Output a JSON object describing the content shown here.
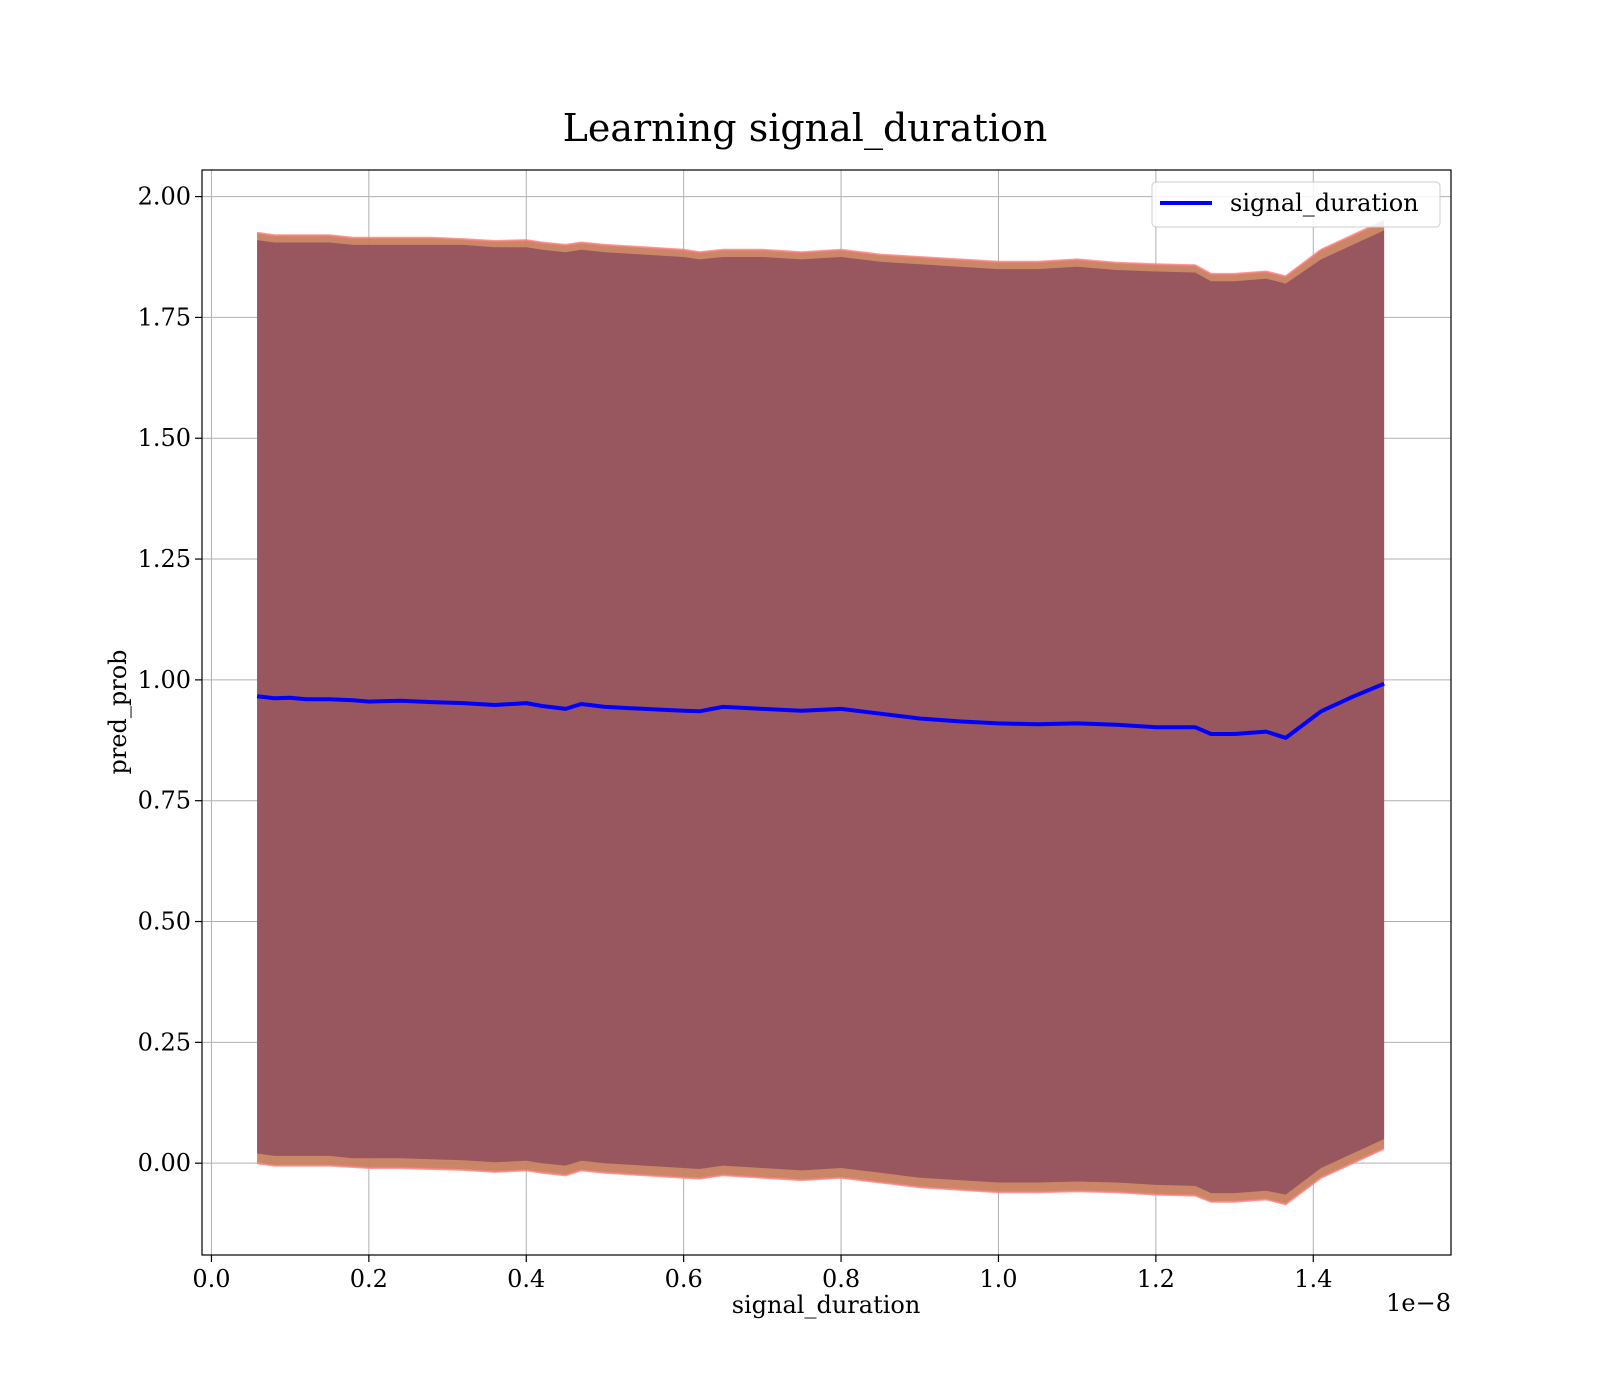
{
  "chart_data": {
    "type": "line",
    "title": "Learning signal_duration",
    "xlabel": "signal_duration",
    "ylabel": "pred_prob",
    "x_offset_text": "1e−8",
    "xlim": [
      -0.012,
      1.575
    ],
    "ylim": [
      -0.19,
      2.055
    ],
    "x_ticks": [
      0.0,
      0.2,
      0.4,
      0.6,
      0.8,
      1.0,
      1.2,
      1.4
    ],
    "x_tick_labels": [
      "0.0",
      "0.2",
      "0.4",
      "0.6",
      "0.8",
      "1.0",
      "1.2",
      "1.4"
    ],
    "y_ticks": [
      0.0,
      0.25,
      0.5,
      0.75,
      1.0,
      1.25,
      1.5,
      1.75,
      2.0
    ],
    "y_tick_labels": [
      "0.00",
      "0.25",
      "0.50",
      "0.75",
      "1.00",
      "1.25",
      "1.50",
      "1.75",
      "2.00"
    ],
    "grid": true,
    "legend": {
      "placement": "top-right",
      "entries": [
        "signal_duration"
      ]
    },
    "colors": {
      "line": "#0000ff",
      "band_inner": "#8b4a5c",
      "band_outer": "#c88060",
      "band_edge": "#ff8080"
    },
    "series": [
      {
        "name": "signal_duration",
        "x": [
          0.058,
          0.08,
          0.1,
          0.12,
          0.15,
          0.18,
          0.2,
          0.24,
          0.28,
          0.32,
          0.36,
          0.4,
          0.42,
          0.45,
          0.47,
          0.5,
          0.55,
          0.6,
          0.62,
          0.65,
          0.7,
          0.75,
          0.8,
          0.85,
          0.9,
          0.95,
          1.0,
          1.05,
          1.1,
          1.15,
          1.2,
          1.25,
          1.27,
          1.3,
          1.34,
          1.365,
          1.41,
          1.45,
          1.49
        ],
        "y": [
          0.966,
          0.962,
          0.963,
          0.96,
          0.96,
          0.958,
          0.955,
          0.957,
          0.954,
          0.952,
          0.948,
          0.952,
          0.946,
          0.94,
          0.95,
          0.944,
          0.94,
          0.936,
          0.935,
          0.944,
          0.94,
          0.936,
          0.94,
          0.93,
          0.92,
          0.914,
          0.91,
          0.908,
          0.91,
          0.907,
          0.902,
          0.902,
          0.888,
          0.888,
          0.893,
          0.88,
          0.935,
          0.965,
          0.992
        ]
      }
    ],
    "band_inner": {
      "upper": [
        1.91,
        1.905,
        1.905,
        1.905,
        1.905,
        1.9,
        1.9,
        1.9,
        1.9,
        1.9,
        1.895,
        1.895,
        1.89,
        1.885,
        1.89,
        1.885,
        1.88,
        1.875,
        1.87,
        1.875,
        1.875,
        1.87,
        1.875,
        1.865,
        1.86,
        1.855,
        1.85,
        1.85,
        1.855,
        1.848,
        1.845,
        1.843,
        1.825,
        1.825,
        1.83,
        1.82,
        1.87,
        1.9,
        1.93
      ],
      "lower": [
        0.02,
        0.015,
        0.015,
        0.015,
        0.015,
        0.01,
        0.01,
        0.01,
        0.008,
        0.006,
        0.002,
        0.005,
        0.0,
        -0.005,
        0.005,
        0.0,
        -0.005,
        -0.01,
        -0.012,
        -0.005,
        -0.01,
        -0.015,
        -0.01,
        -0.02,
        -0.03,
        -0.035,
        -0.04,
        -0.04,
        -0.038,
        -0.04,
        -0.045,
        -0.047,
        -0.062,
        -0.062,
        -0.057,
        -0.065,
        -0.01,
        0.02,
        0.05
      ]
    },
    "band_outer": {
      "upper": [
        1.925,
        1.92,
        1.92,
        1.92,
        1.92,
        1.915,
        1.915,
        1.915,
        1.915,
        1.912,
        1.908,
        1.91,
        1.905,
        1.9,
        1.905,
        1.9,
        1.895,
        1.89,
        1.885,
        1.89,
        1.89,
        1.885,
        1.89,
        1.88,
        1.875,
        1.87,
        1.865,
        1.865,
        1.87,
        1.863,
        1.86,
        1.858,
        1.84,
        1.84,
        1.845,
        1.835,
        1.89,
        1.92,
        1.95
      ],
      "lower": [
        0.0,
        -0.005,
        -0.005,
        -0.005,
        -0.005,
        -0.008,
        -0.01,
        -0.01,
        -0.012,
        -0.014,
        -0.018,
        -0.015,
        -0.02,
        -0.025,
        -0.015,
        -0.02,
        -0.025,
        -0.03,
        -0.032,
        -0.025,
        -0.03,
        -0.035,
        -0.03,
        -0.04,
        -0.05,
        -0.055,
        -0.06,
        -0.06,
        -0.058,
        -0.06,
        -0.065,
        -0.067,
        -0.08,
        -0.08,
        -0.075,
        -0.085,
        -0.03,
        0.0,
        0.03
      ]
    }
  }
}
